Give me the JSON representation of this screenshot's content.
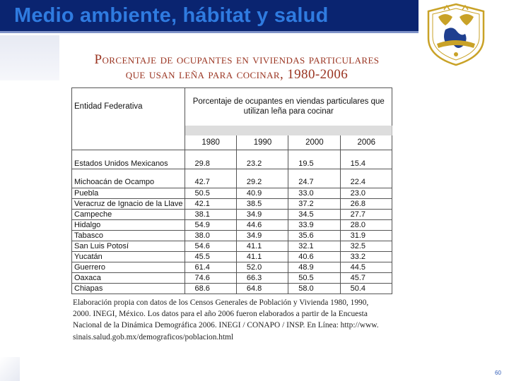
{
  "slide": {
    "title": "Medio ambiente, hábitat y salud",
    "page_number": "60"
  },
  "document": {
    "title_line1": "Porcentaje de ocupantes en viviendas particulares",
    "title_line2": "que usan leña para cocinar, 1980-2006",
    "table": {
      "entity_header": "Entidad Federativa",
      "main_header": "Porcentaje de ocupantes en viendas particulares que utilizan leña para cocinar",
      "years": [
        "1980",
        "1990",
        "2000",
        "2006"
      ],
      "national": {
        "name": "Estados Unidos Mexicanos",
        "values": [
          "29.8",
          "23.2",
          "19.5",
          "15.4"
        ]
      },
      "rows": [
        {
          "name": "Michoacán de Ocampo",
          "values": [
            "42.7",
            "29.2",
            "24.7",
            "22.4"
          ]
        },
        {
          "name": "Puebla",
          "values": [
            "50.5",
            "40.9",
            "33.0",
            "23.0"
          ]
        },
        {
          "name": "Veracruz de Ignacio de la Llave",
          "values": [
            "42.1",
            "38.5",
            "37.2",
            "26.8"
          ]
        },
        {
          "name": "Campeche",
          "values": [
            "38.1",
            "34.9",
            "34.5",
            "27.7"
          ]
        },
        {
          "name": "Hidalgo",
          "values": [
            "54.9",
            "44.6",
            "33.9",
            "28.0"
          ]
        },
        {
          "name": "Tabasco",
          "values": [
            "38.0",
            "34.9",
            "35.6",
            "31.9"
          ]
        },
        {
          "name": "San Luis Potosí",
          "values": [
            "54.6",
            "41.1",
            "32.1",
            "32.5"
          ]
        },
        {
          "name": "Yucatán",
          "values": [
            "45.5",
            "41.1",
            "40.6",
            "33.2"
          ]
        },
        {
          "name": "Guerrero",
          "values": [
            "61.4",
            "52.0",
            "48.9",
            "44.5"
          ]
        },
        {
          "name": "Oaxaca",
          "values": [
            "74.6",
            "66.3",
            "50.5",
            "45.7"
          ]
        },
        {
          "name": "Chiapas",
          "values": [
            "68.6",
            "64.8",
            "58.0",
            "50.4"
          ]
        }
      ]
    },
    "source": {
      "line1": "Elaboración propia con datos de los Censos Generales de Población y Vivienda 1980, 1990,",
      "line2": "2000. INEGI, México. Los datos para el año 2006 fueron elaborados a partir de la Encuesta",
      "line3": "Nacional de la Dinámica Demográfica 2006. INEGI / CONAPO / INSP. En Línea: http://www.",
      "line4": "sinais.salud.gob.mx/demograficos/poblacion.html"
    }
  },
  "colors": {
    "header_bar": "#0a2470",
    "title_text": "#2f7be0",
    "doc_title": "#9a3421",
    "crest_gold": "#c9a227"
  },
  "icons": {
    "crest": "university-crest-icon"
  }
}
